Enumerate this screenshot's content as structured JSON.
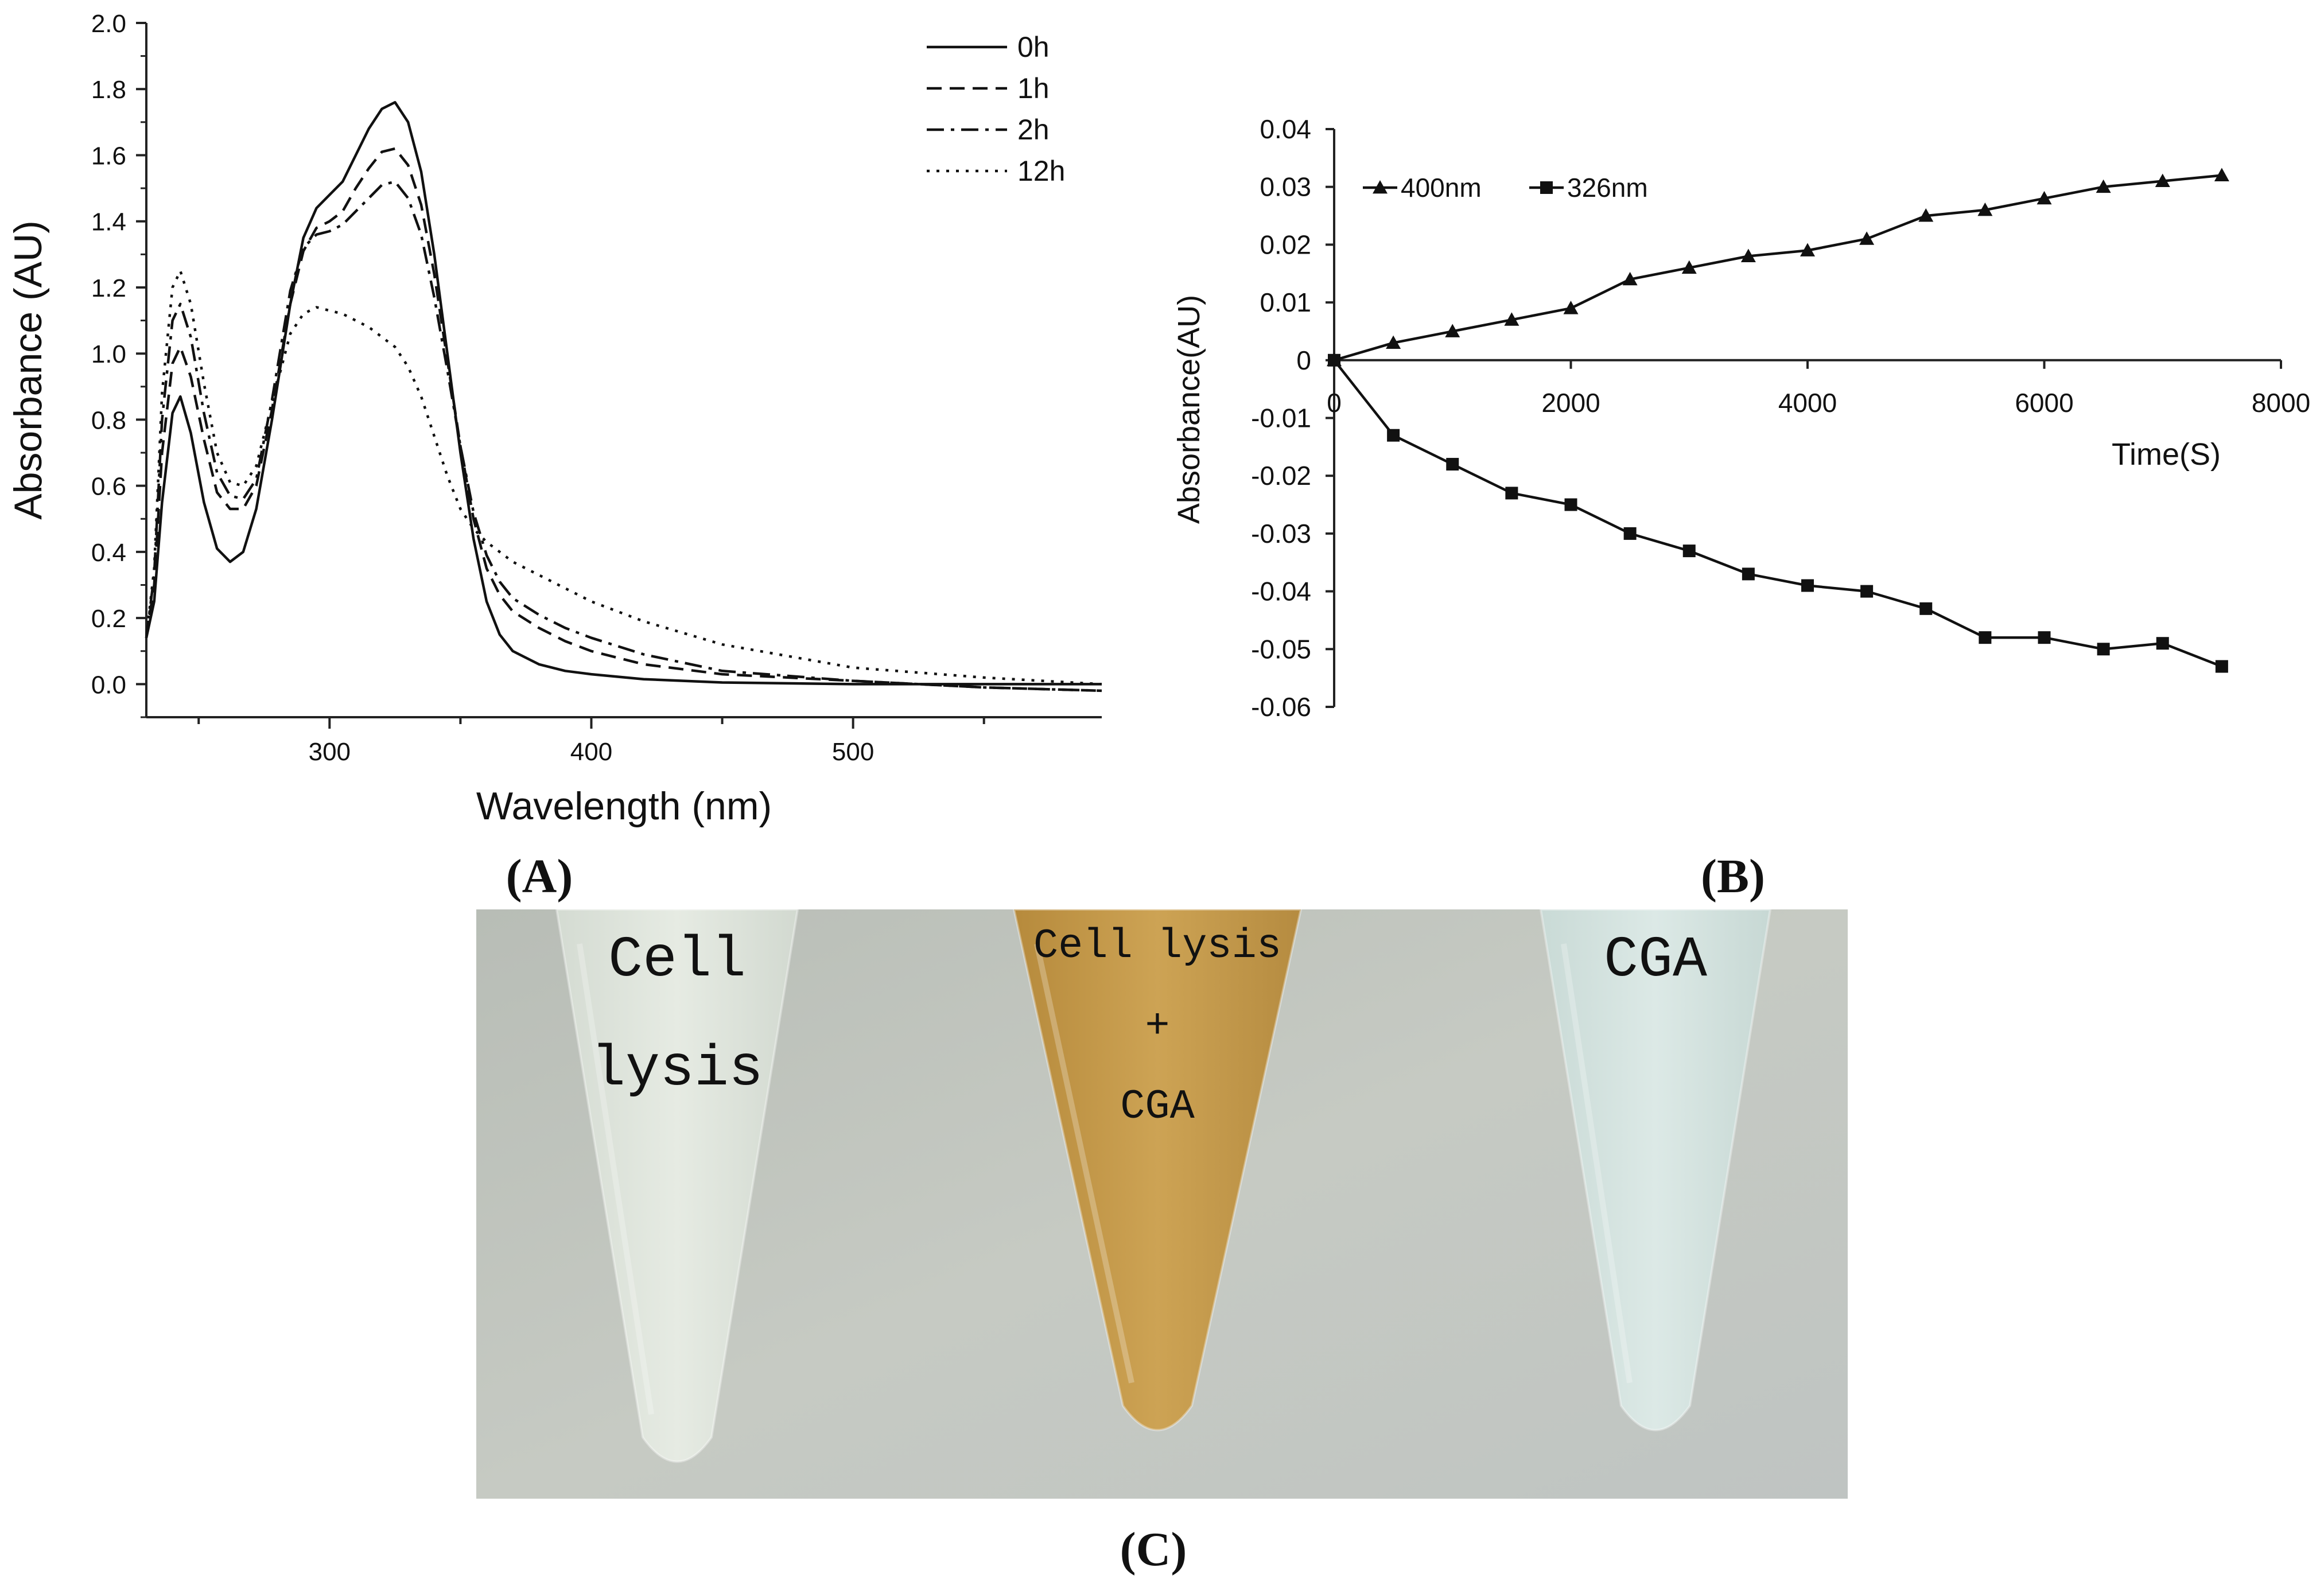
{
  "panel_labels": {
    "a": "A",
    "b": "B",
    "c": "C"
  },
  "chart_data": [
    {
      "panel": "A",
      "type": "line",
      "title": "",
      "xlabel": "Wavelength (nm)",
      "ylabel": "Absorbance (AU)",
      "xlim": [
        230,
        595
      ],
      "ylim": [
        -0.1,
        2.0
      ],
      "x_ticks": [
        300,
        400,
        500
      ],
      "y_ticks": [
        0.0,
        0.2,
        0.4,
        0.6,
        0.8,
        1.0,
        1.2,
        1.4,
        1.6,
        1.8,
        2.0
      ],
      "y_tick_labels": [
        "0.0",
        "0.2",
        "0.4",
        "0.6",
        "0.8",
        "1.0",
        "1.2",
        "1.4",
        "1.6",
        "1.8",
        "2.0"
      ],
      "legend_position": "top-right",
      "grid": false,
      "series": [
        {
          "name": "0h",
          "style": "solid",
          "x": [
            230,
            233,
            236,
            240,
            243,
            247,
            252,
            257,
            262,
            267,
            272,
            278,
            285,
            290,
            295,
            300,
            305,
            310,
            315,
            320,
            325,
            330,
            335,
            340,
            345,
            350,
            355,
            360,
            365,
            370,
            380,
            390,
            400,
            420,
            450,
            500,
            550,
            595
          ],
          "y": [
            0.14,
            0.25,
            0.55,
            0.82,
            0.87,
            0.76,
            0.55,
            0.41,
            0.37,
            0.4,
            0.53,
            0.8,
            1.15,
            1.35,
            1.44,
            1.48,
            1.52,
            1.6,
            1.68,
            1.74,
            1.76,
            1.7,
            1.55,
            1.3,
            1.0,
            0.7,
            0.44,
            0.25,
            0.15,
            0.1,
            0.06,
            0.04,
            0.03,
            0.015,
            0.005,
            0.0,
            0.0,
            0.0
          ]
        },
        {
          "name": "1h",
          "style": "dashed",
          "x": [
            230,
            233,
            236,
            240,
            243,
            247,
            252,
            257,
            262,
            267,
            272,
            278,
            285,
            290,
            295,
            300,
            305,
            310,
            315,
            320,
            325,
            330,
            335,
            340,
            345,
            350,
            355,
            360,
            365,
            370,
            380,
            390,
            400,
            420,
            450,
            500,
            550,
            595
          ],
          "y": [
            0.14,
            0.3,
            0.7,
            0.97,
            1.02,
            0.93,
            0.74,
            0.58,
            0.53,
            0.53,
            0.6,
            0.83,
            1.15,
            1.31,
            1.38,
            1.4,
            1.43,
            1.5,
            1.56,
            1.61,
            1.62,
            1.57,
            1.45,
            1.24,
            0.98,
            0.72,
            0.5,
            0.35,
            0.27,
            0.22,
            0.17,
            0.13,
            0.1,
            0.06,
            0.03,
            0.01,
            -0.01,
            -0.02
          ]
        },
        {
          "name": "2h",
          "style": "dashdot",
          "x": [
            230,
            233,
            236,
            240,
            243,
            247,
            252,
            257,
            262,
            267,
            272,
            278,
            285,
            290,
            295,
            300,
            305,
            310,
            315,
            320,
            325,
            330,
            335,
            340,
            345,
            350,
            355,
            360,
            365,
            370,
            380,
            390,
            400,
            420,
            450,
            500,
            550,
            595
          ],
          "y": [
            0.14,
            0.33,
            0.8,
            1.1,
            1.15,
            1.05,
            0.82,
            0.64,
            0.57,
            0.56,
            0.62,
            0.86,
            1.19,
            1.32,
            1.36,
            1.37,
            1.39,
            1.43,
            1.47,
            1.51,
            1.52,
            1.47,
            1.36,
            1.17,
            0.95,
            0.72,
            0.52,
            0.39,
            0.31,
            0.26,
            0.21,
            0.17,
            0.14,
            0.09,
            0.04,
            0.01,
            -0.01,
            -0.02
          ]
        },
        {
          "name": "12h",
          "style": "dotted",
          "x": [
            230,
            233,
            236,
            240,
            243,
            247,
            252,
            257,
            262,
            267,
            272,
            278,
            285,
            290,
            295,
            300,
            305,
            310,
            315,
            320,
            325,
            330,
            335,
            340,
            345,
            350,
            355,
            360,
            365,
            370,
            380,
            390,
            400,
            420,
            450,
            500,
            550,
            595
          ],
          "y": [
            0.14,
            0.35,
            0.88,
            1.2,
            1.25,
            1.15,
            0.91,
            0.7,
            0.61,
            0.6,
            0.66,
            0.85,
            1.06,
            1.12,
            1.14,
            1.13,
            1.12,
            1.1,
            1.08,
            1.05,
            1.02,
            0.96,
            0.87,
            0.75,
            0.63,
            0.53,
            0.47,
            0.43,
            0.4,
            0.37,
            0.33,
            0.29,
            0.25,
            0.19,
            0.12,
            0.05,
            0.02,
            0.0
          ]
        }
      ]
    },
    {
      "panel": "B",
      "type": "line",
      "title": "",
      "xlabel": "Time(S)",
      "ylabel": "Absorbance(AU)",
      "xlim": [
        0,
        8000
      ],
      "ylim": [
        -0.06,
        0.04
      ],
      "x_ticks": [
        0,
        2000,
        4000,
        6000,
        8000
      ],
      "y_ticks": [
        0.04,
        0.03,
        0.02,
        0.01,
        0,
        -0.01,
        -0.02,
        -0.03,
        -0.04,
        -0.05,
        -0.06
      ],
      "y_tick_labels": [
        "0.04",
        "0.03",
        "0.02",
        "0.01",
        "0",
        "-0.01",
        "-0.02",
        "-0.03",
        "-0.04",
        "-0.05",
        "-0.06"
      ],
      "legend_position": "top-left",
      "grid": false,
      "series": [
        {
          "name": "400nm",
          "marker": "triangle",
          "x": [
            0,
            500,
            1000,
            1500,
            2000,
            2500,
            3000,
            3500,
            4000,
            4500,
            5000,
            5500,
            6000,
            6500,
            7000,
            7500
          ],
          "y": [
            0,
            0.003,
            0.005,
            0.007,
            0.009,
            0.014,
            0.016,
            0.018,
            0.019,
            0.021,
            0.025,
            0.026,
            0.028,
            0.03,
            0.031,
            0.032
          ]
        },
        {
          "name": "326nm",
          "marker": "square",
          "x": [
            0,
            500,
            1000,
            1500,
            2000,
            2500,
            3000,
            3500,
            4000,
            4500,
            5000,
            5500,
            6000,
            6500,
            7000,
            7500
          ],
          "y": [
            0,
            -0.013,
            -0.018,
            -0.023,
            -0.025,
            -0.03,
            -0.033,
            -0.037,
            -0.039,
            -0.04,
            -0.043,
            -0.048,
            -0.048,
            -0.05,
            -0.049,
            -0.053
          ]
        }
      ]
    }
  ],
  "photo": {
    "tubes": [
      {
        "lines": [
          "Cell",
          "lysis"
        ],
        "liquid": "#d9e0d6"
      },
      {
        "lines": [
          "Cell lysis",
          "+",
          "CGA"
        ],
        "liquid": "#c59a44"
      },
      {
        "lines": [
          "CGA"
        ],
        "liquid": "#cfe0dc"
      }
    ],
    "background": "#c3c8c1"
  }
}
